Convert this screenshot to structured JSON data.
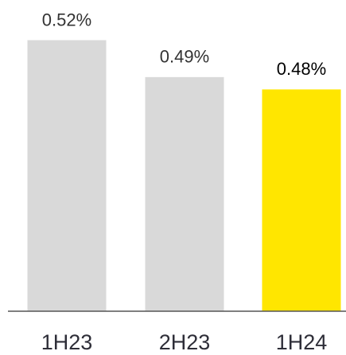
{
  "chart_data": {
    "type": "bar",
    "categories": [
      "1H23",
      "2H23",
      "1H24"
    ],
    "values": [
      0.52,
      0.49,
      0.48
    ],
    "value_labels": [
      "0.52%",
      "0.49%",
      "0.48%"
    ],
    "colors": [
      "#d9d9d9",
      "#d9d9d9",
      "#ffe600"
    ],
    "ylim": [
      0.3,
      0.55
    ]
  }
}
